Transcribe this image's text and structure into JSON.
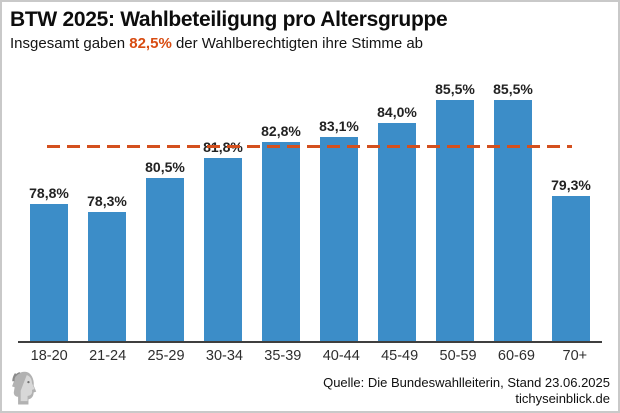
{
  "header": {
    "title": "BTW 2025: Wahlbeteiligung pro Altersgruppe",
    "subtitle": {
      "prefix": "Insgesamt gaben ",
      "highlight": "82,5%",
      "suffix": " der Wahlberechtigten ihre Stimme ab"
    }
  },
  "chart_data": {
    "type": "bar",
    "title": "BTW 2025: Wahlbeteiligung pro Altersgruppe",
    "categories": [
      "18-20",
      "21-24",
      "25-29",
      "30-34",
      "35-39",
      "40-44",
      "45-49",
      "50-59",
      "60-69",
      "70+"
    ],
    "values": [
      78.8,
      78.3,
      80.5,
      81.8,
      82.8,
      83.1,
      84.0,
      85.5,
      85.5,
      79.3
    ],
    "value_labels": [
      "78,8%",
      "78,3%",
      "80,5%",
      "81,8%",
      "82,8%",
      "83,1%",
      "84,0%",
      "85,5%",
      "85,5%",
      "79,3%"
    ],
    "xlabel": "",
    "ylabel": "",
    "ylim": [
      70,
      88.25
    ],
    "grid": false,
    "legend": false,
    "bar_color": "#3c8dc8",
    "reference_line": {
      "value": 82.5,
      "style": "dashed",
      "color": "#d4501e"
    }
  },
  "footer": {
    "source": "Quelle: Die Bundeswahlleiterin, Stand 23.06.2025",
    "website": "tichyseinblick.de"
  },
  "icons": {
    "logo": "classical-head-profile-logo"
  },
  "colors": {
    "background": "#ffffff",
    "border": "#c9c9c9",
    "bar": "#3c8dc8",
    "accent_text": "#d84c12",
    "reference_line": "#d4501e",
    "axis": "#3f3f3f",
    "text": "#111111"
  }
}
